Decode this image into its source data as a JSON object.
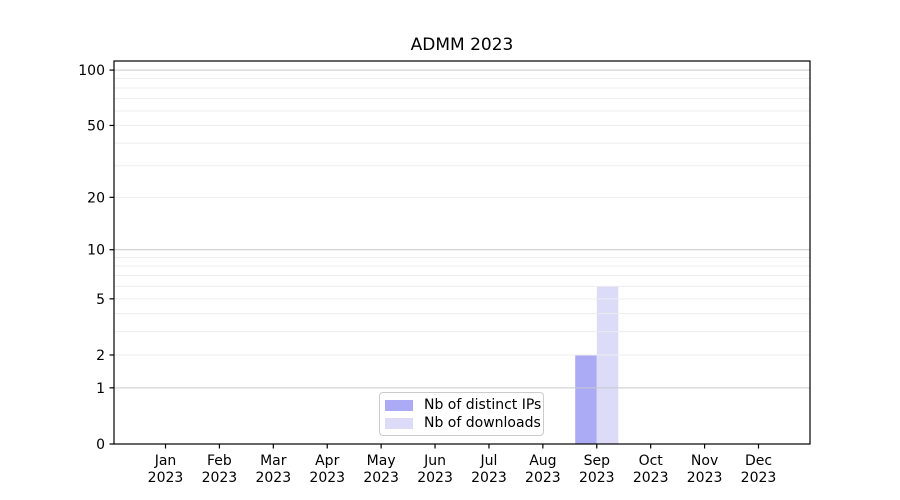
{
  "figure": {
    "title": "ADMM 2023",
    "background": "#ffffff"
  },
  "chart_data": {
    "type": "bar",
    "title": "ADMM 2023",
    "categories": [
      "Jan",
      "Feb",
      "Mar",
      "Apr",
      "May",
      "Jun",
      "Jul",
      "Aug",
      "Sep",
      "Oct",
      "Nov",
      "Dec"
    ],
    "x_tick_year": "2023",
    "series": [
      {
        "name": "Nb of distinct IPs",
        "color": "#aaaaf5",
        "values": [
          0,
          0,
          0,
          0,
          0,
          0,
          0,
          0,
          2,
          0,
          0,
          0
        ]
      },
      {
        "name": "Nb of downloads",
        "color": "#dcdcf8",
        "values": [
          0,
          0,
          0,
          0,
          0,
          0,
          0,
          0,
          6,
          0,
          0,
          0
        ]
      }
    ],
    "yscale": "log10(value+1)",
    "yticks": [
      0,
      1,
      2,
      5,
      10,
      20,
      50,
      100
    ],
    "ylim": [
      0,
      112
    ],
    "xlabel": "",
    "ylabel": "",
    "grid": "horizontal",
    "grid_minor_color": "#ededed",
    "grid_major_color": "#c9c9c9",
    "axis_color": "#000000",
    "text_color": "#000000",
    "legend_position": "lower center",
    "legend_border_color": "#cccccc"
  }
}
